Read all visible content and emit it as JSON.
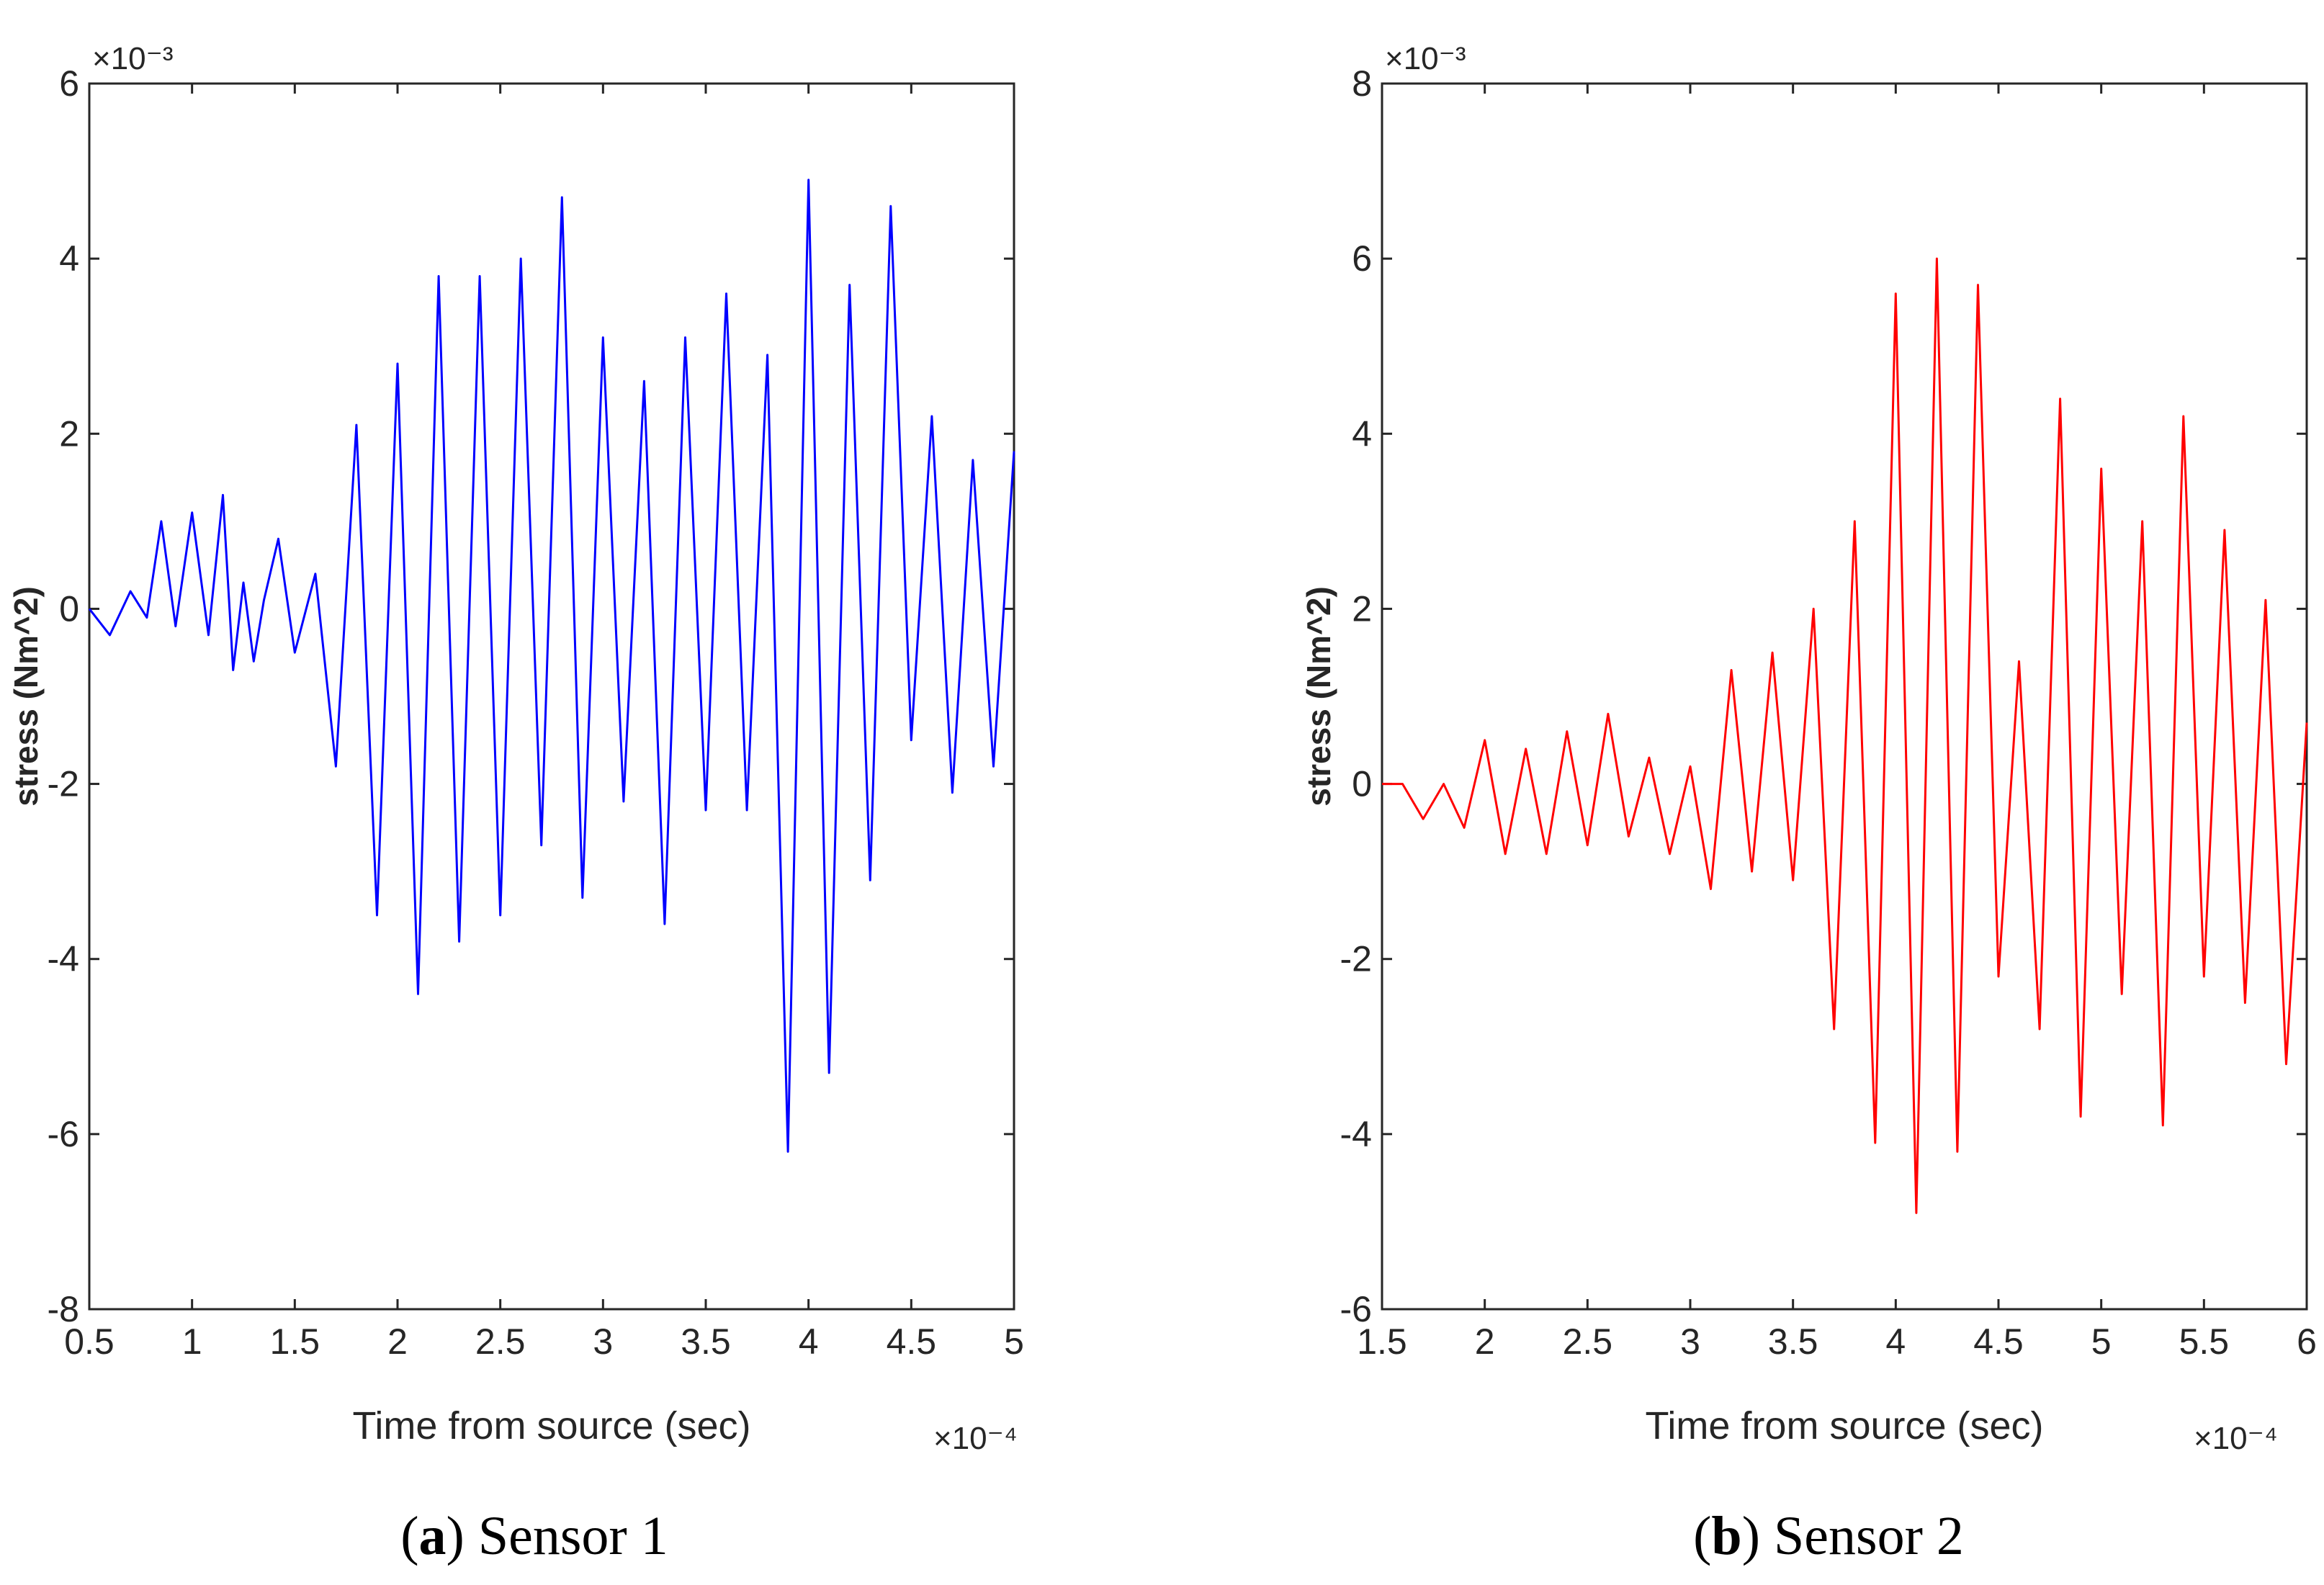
{
  "chart_data": [
    {
      "type": "line",
      "title": "",
      "xlabel": "Time from source (sec)",
      "ylabel": "stress (Nm^2)",
      "x_exponent": "×10⁻⁴",
      "y_exponent": "×10⁻³",
      "xlim": [
        0.5,
        5
      ],
      "ylim": [
        -8,
        6
      ],
      "xticks": [
        0.5,
        1,
        1.5,
        2,
        2.5,
        3,
        3.5,
        4,
        4.5,
        5
      ],
      "xtick_labels": [
        "0.5",
        "1",
        "1.5",
        "2",
        "2.5",
        "3",
        "3.5",
        "4",
        "4.5",
        "5"
      ],
      "yticks": [
        -8,
        -6,
        -4,
        -2,
        0,
        2,
        4,
        6
      ],
      "ytick_labels": [
        "-8",
        "-6",
        "-4",
        "-2",
        "0",
        "2",
        "4",
        "6"
      ],
      "caption_letter": "a",
      "caption_text": "Sensor 1",
      "color": "#0000ff",
      "series": [
        {
          "name": "Sensor 1",
          "x": [
            0.5,
            0.6,
            0.7,
            0.78,
            0.85,
            0.92,
            1.0,
            1.08,
            1.15,
            1.2,
            1.25,
            1.3,
            1.35,
            1.42,
            1.5,
            1.6,
            1.7,
            1.8,
            1.9,
            2.0,
            2.1,
            2.2,
            2.3,
            2.4,
            2.5,
            2.6,
            2.7,
            2.8,
            2.9,
            3.0,
            3.1,
            3.2,
            3.3,
            3.4,
            3.5,
            3.6,
            3.7,
            3.8,
            3.9,
            4.0,
            4.1,
            4.2,
            4.3,
            4.4,
            4.5,
            4.6,
            4.7,
            4.8,
            4.9,
            5.0
          ],
          "y": [
            0.0,
            -0.3,
            0.2,
            -0.1,
            1.0,
            -0.2,
            1.1,
            -0.3,
            1.3,
            -0.7,
            0.3,
            -0.6,
            0.1,
            0.8,
            -0.5,
            0.4,
            -1.8,
            2.1,
            -3.5,
            2.8,
            -4.4,
            3.8,
            -3.8,
            3.8,
            -3.5,
            4.0,
            -2.7,
            4.7,
            -3.3,
            3.1,
            -2.2,
            2.6,
            -3.6,
            3.1,
            -2.3,
            3.6,
            -2.3,
            2.9,
            -6.2,
            4.9,
            -5.3,
            3.7,
            -3.1,
            4.6,
            -1.5,
            2.2,
            -2.1,
            1.7,
            -1.8,
            1.8
          ]
        }
      ]
    },
    {
      "type": "line",
      "title": "",
      "xlabel": "Time from source (sec)",
      "ylabel": "stress (Nm^2)",
      "x_exponent": "×10⁻⁴",
      "y_exponent": "×10⁻³",
      "xlim": [
        1.5,
        6
      ],
      "ylim": [
        -6,
        8
      ],
      "xticks": [
        1.5,
        2,
        2.5,
        3,
        3.5,
        4,
        4.5,
        5,
        5.5,
        6
      ],
      "xtick_labels": [
        "1.5",
        "2",
        "2.5",
        "3",
        "3.5",
        "4",
        "4.5",
        "5",
        "5.5",
        "6"
      ],
      "yticks": [
        -6,
        -4,
        -2,
        0,
        2,
        4,
        6,
        8
      ],
      "ytick_labels": [
        "-6",
        "-4",
        "-2",
        "0",
        "2",
        "4",
        "6",
        "8"
      ],
      "caption_letter": "b",
      "caption_text": "Sensor 2",
      "color": "#ff0000",
      "series": [
        {
          "name": "Sensor 2",
          "x": [
            1.5,
            1.6,
            1.7,
            1.8,
            1.9,
            2.0,
            2.1,
            2.2,
            2.3,
            2.4,
            2.5,
            2.6,
            2.7,
            2.8,
            2.9,
            3.0,
            3.1,
            3.2,
            3.3,
            3.4,
            3.5,
            3.6,
            3.7,
            3.8,
            3.9,
            4.0,
            4.1,
            4.2,
            4.3,
            4.4,
            4.5,
            4.6,
            4.7,
            4.8,
            4.9,
            5.0,
            5.1,
            5.2,
            5.3,
            5.4,
            5.5,
            5.6,
            5.7,
            5.8,
            5.9,
            6.0
          ],
          "y": [
            0.0,
            0.0,
            -0.4,
            0.0,
            -0.5,
            0.5,
            -0.8,
            0.4,
            -0.8,
            0.6,
            -0.7,
            0.8,
            -0.6,
            0.3,
            -0.8,
            0.2,
            -1.2,
            1.3,
            -1.0,
            1.5,
            -1.1,
            2.0,
            -2.8,
            3.0,
            -4.1,
            5.6,
            -4.9,
            6.0,
            -4.2,
            5.7,
            -2.2,
            1.4,
            -2.8,
            4.4,
            -3.8,
            3.6,
            -2.4,
            3.0,
            -3.9,
            4.2,
            -2.2,
            2.9,
            -2.5,
            2.1,
            -3.2,
            0.7
          ]
        }
      ]
    }
  ]
}
